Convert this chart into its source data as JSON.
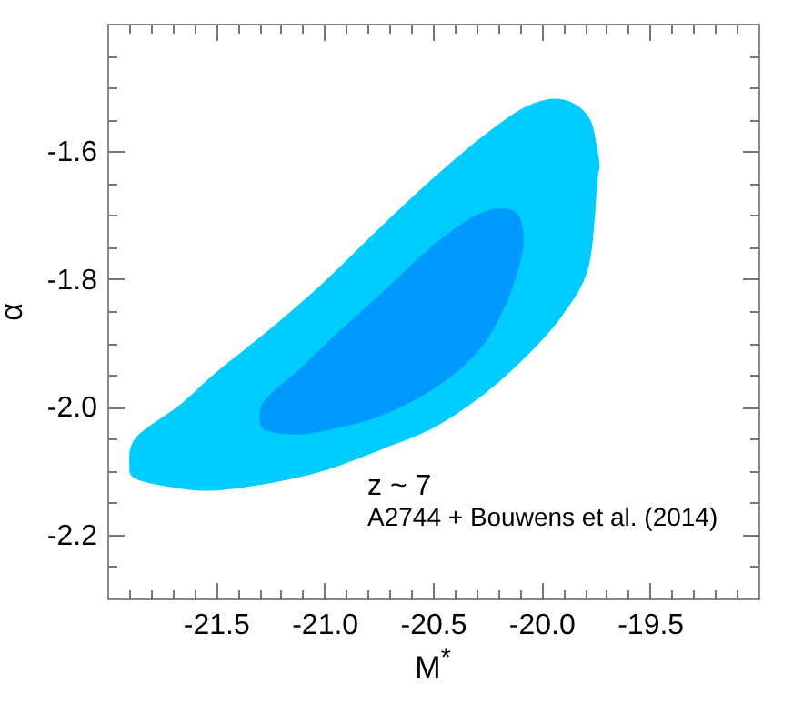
{
  "chart_data": {
    "type": "area",
    "xlabel": "M$^{*}$",
    "ylabel": "α",
    "xlim": [
      -22.0,
      -19.0
    ],
    "ylim": [
      -2.3,
      -1.4
    ],
    "xticks": [
      {
        "value": -21.9,
        "label": null
      },
      {
        "value": -21.8,
        "label": null
      },
      {
        "value": -21.7,
        "label": null
      },
      {
        "value": -21.6,
        "label": null
      },
      -21.5,
      {
        "value": -21.4,
        "label": null
      },
      {
        "value": -21.3,
        "label": null
      },
      {
        "value": -21.2,
        "label": null
      },
      {
        "value": -21.1,
        "label": null
      },
      {
        "value": -21.0,
        "label": "-21.0"
      },
      {
        "value": -20.9,
        "label": null
      },
      {
        "value": -20.8,
        "label": null
      },
      {
        "value": -20.7,
        "label": null
      },
      {
        "value": -20.6,
        "label": null
      },
      -20.5,
      {
        "value": -20.4,
        "label": null
      },
      {
        "value": -20.3,
        "label": null
      },
      {
        "value": -20.2,
        "label": null
      },
      {
        "value": -20.1,
        "label": null
      },
      {
        "value": -20.0,
        "label": "-20.0"
      },
      {
        "value": -19.9,
        "label": null
      },
      {
        "value": -19.8,
        "label": null
      },
      {
        "value": -19.7,
        "label": null
      },
      {
        "value": -19.6,
        "label": null
      },
      -19.5,
      {
        "value": -19.4,
        "label": null
      },
      {
        "value": -19.3,
        "label": null
      },
      {
        "value": -19.2,
        "label": null
      },
      {
        "value": -19.1,
        "label": null
      }
    ],
    "yticks": [
      {
        "value": -2.25,
        "label": null
      },
      {
        "value": -2.2,
        "label": "-2.2"
      },
      {
        "value": -2.15,
        "label": null
      },
      {
        "value": -2.1,
        "label": null
      },
      {
        "value": -2.05,
        "label": null
      },
      {
        "value": -2.0,
        "label": "-2.0"
      },
      {
        "value": -1.95,
        "label": null
      },
      {
        "value": -1.9,
        "label": null
      },
      {
        "value": -1.85,
        "label": null
      },
      {
        "value": -1.8,
        "label": "-1.8"
      },
      {
        "value": -1.75,
        "label": null
      },
      {
        "value": -1.7,
        "label": null
      },
      {
        "value": -1.65,
        "label": null
      },
      {
        "value": -1.6,
        "label": "-1.6"
      },
      {
        "value": -1.55,
        "label": null
      },
      {
        "value": -1.5,
        "label": null
      },
      {
        "value": -1.45,
        "label": null
      }
    ],
    "series": [
      {
        "color": "#00ccff",
        "x": [
          -21.89,
          -21.86,
          -21.66,
          -21.5,
          -21.24,
          -21.0,
          -20.74,
          -20.5,
          -20.27,
          -20.07,
          -19.91,
          -19.79,
          -19.75,
          -19.74,
          -19.75,
          -19.79,
          -19.91,
          -20.07,
          -20.27,
          -20.5,
          -20.74,
          -21.0,
          -21.24,
          -21.5,
          -21.66,
          -21.86
        ],
        "values": [
          -2.09,
          -2.049,
          -1.999,
          -1.95,
          -1.879,
          -1.808,
          -1.722,
          -1.646,
          -1.58,
          -1.533,
          -1.521,
          -1.547,
          -1.599,
          -1.625,
          -1.646,
          -1.779,
          -1.855,
          -1.917,
          -1.978,
          -2.03,
          -2.064,
          -2.097,
          -2.116,
          -2.128,
          -2.125,
          -2.111
        ]
      },
      {
        "color": "#0099ff",
        "x": [
          -21.29,
          -21.26,
          -21.1,
          -20.94,
          -20.74,
          -20.5,
          -20.3,
          -20.18,
          -20.11,
          -20.09,
          -20.11,
          -20.18,
          -20.3,
          -20.5,
          -20.74,
          -20.94,
          -21.1,
          -21.26
        ],
        "values": [
          -2.016,
          -1.988,
          -1.94,
          -1.888,
          -1.827,
          -1.751,
          -1.703,
          -1.692,
          -1.703,
          -1.74,
          -1.779,
          -1.845,
          -1.912,
          -1.969,
          -2.011,
          -2.03,
          -2.04,
          -2.035
        ]
      }
    ],
    "annotations": [
      "z ~ 7",
      "A2744 + Bouwens et al. (2014)"
    ]
  }
}
